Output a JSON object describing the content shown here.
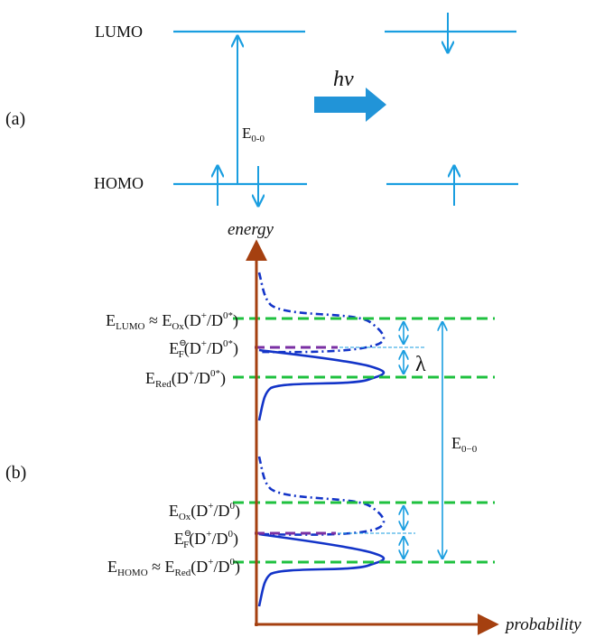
{
  "panel_a": {
    "label": "(a)",
    "lumo_label": "LUMO",
    "homo_label": "HOMO",
    "gap_label_main": "E",
    "gap_label_sub": "0-0",
    "photon_label": "hν"
  },
  "panel_b": {
    "label": "(b)",
    "y_axis_label": "energy",
    "x_axis_label": "probability",
    "gap_label_main": "E",
    "gap_label_sub": "0−0",
    "reorg_label": "λ",
    "upper": {
      "lumo": {
        "E": "E",
        "sub": "LUMO",
        "approx": " ≈ E",
        "sub2": "Ox",
        "a": "(D",
        "sup1": "+",
        "b": "/D",
        "sup2": "0*",
        "c": ")"
      },
      "fermi": {
        "E": "E",
        "sup0": "⊖",
        "sub": "F",
        "a": "(D",
        "sup1": "+",
        "b": "/D",
        "sup2": "0*",
        "c": ")"
      },
      "red": {
        "E": "E",
        "sub": "Red",
        "a": "(D",
        "sup1": "+",
        "b": "/D",
        "sup2": "0*",
        "c": ")"
      }
    },
    "lower": {
      "ox": {
        "E": "E",
        "sub": "Ox",
        "a": "(D",
        "sup1": "+",
        "b": "/D",
        "sup2": "0",
        "c": ")"
      },
      "fermi": {
        "E": "E",
        "sup0": "⊖",
        "sub": "F",
        "a": "(D",
        "sup1": "+",
        "b": "/D",
        "sup2": "0",
        "c": ")"
      },
      "homo": {
        "E": "E",
        "sub": "HOMO",
        "approx": " ≈ E",
        "sub2": "Red",
        "a": "(D",
        "sup1": "+",
        "b": "/D",
        "sup2": "0",
        "c": ")"
      }
    }
  },
  "colors": {
    "level_blue": "#1a9ee0",
    "curve_blue": "#1334c8",
    "dash_green": "#1fc13f",
    "dash_purple": "#7a2fa3",
    "axis_brown": "#a54010",
    "arrow_fill": "#2194d8"
  }
}
